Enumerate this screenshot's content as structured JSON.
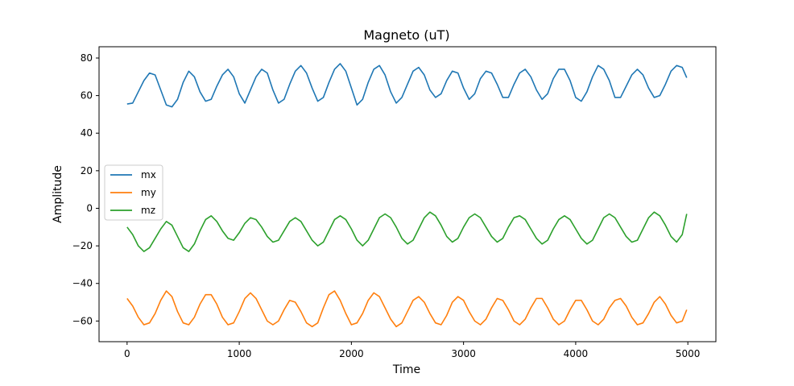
{
  "chart_data": {
    "type": "line",
    "title": "Magneto (uT)",
    "xlabel": "Time",
    "ylabel": "Amplitude",
    "xlim": [
      -250,
      5250
    ],
    "ylim": [
      -71,
      86
    ],
    "xticks": [
      0,
      1000,
      2000,
      3000,
      4000,
      5000
    ],
    "yticks": [
      -60,
      -40,
      -20,
      0,
      20,
      40,
      60,
      80
    ],
    "legend": {
      "placement": "center-left"
    },
    "colors": {
      "mx": "#1f77b4",
      "my": "#ff7f0e",
      "mz": "#2ca02c"
    },
    "series": [
      {
        "name": "mx",
        "x": [
          0,
          50,
          100,
          150,
          200,
          250,
          300,
          350,
          400,
          450,
          500,
          550,
          600,
          650,
          700,
          750,
          800,
          850,
          900,
          950,
          1000,
          1050,
          1100,
          1150,
          1200,
          1250,
          1300,
          1350,
          1400,
          1450,
          1500,
          1550,
          1600,
          1650,
          1700,
          1750,
          1800,
          1850,
          1900,
          1950,
          2000,
          2050,
          2100,
          2150,
          2200,
          2250,
          2300,
          2350,
          2400,
          2450,
          2500,
          2550,
          2600,
          2650,
          2700,
          2750,
          2800,
          2850,
          2900,
          2950,
          3000,
          3050,
          3100,
          3150,
          3200,
          3250,
          3300,
          3350,
          3400,
          3450,
          3500,
          3550,
          3600,
          3650,
          3700,
          3750,
          3800,
          3850,
          3900,
          3950,
          4000,
          4050,
          4100,
          4150,
          4200,
          4250,
          4300,
          4350,
          4400,
          4450,
          4500,
          4550,
          4600,
          4650,
          4700,
          4750,
          4800,
          4850,
          4900,
          4950,
          4990
        ],
        "values": [
          55.5,
          56,
          62,
          68,
          72,
          71,
          63,
          55,
          54,
          58,
          67,
          73,
          70,
          62,
          57,
          58,
          65,
          71,
          74,
          70,
          61,
          56,
          63,
          70,
          74,
          72,
          63,
          56,
          58,
          66,
          73,
          76,
          72,
          64,
          57,
          59,
          67,
          74,
          77,
          73,
          64,
          55,
          58,
          67,
          74,
          76,
          71,
          62,
          56,
          59,
          66,
          73,
          75,
          71,
          63,
          59,
          61,
          68,
          73,
          72,
          64,
          58,
          61,
          69,
          73,
          72,
          66,
          59,
          59,
          66,
          72,
          74,
          70,
          63,
          58,
          61,
          69,
          74,
          74,
          68,
          59,
          57,
          62,
          70,
          76,
          74,
          68,
          59,
          59,
          65,
          71,
          74,
          71,
          64,
          59,
          60,
          66,
          73,
          76,
          75,
          69.5
        ]
      },
      {
        "name": "my",
        "x": [
          0,
          50,
          100,
          150,
          200,
          250,
          300,
          350,
          400,
          450,
          500,
          550,
          600,
          650,
          700,
          750,
          800,
          850,
          900,
          950,
          1000,
          1050,
          1100,
          1150,
          1200,
          1250,
          1300,
          1350,
          1400,
          1450,
          1500,
          1550,
          1600,
          1650,
          1700,
          1750,
          1800,
          1850,
          1900,
          1950,
          2000,
          2050,
          2100,
          2150,
          2200,
          2250,
          2300,
          2350,
          2400,
          2450,
          2500,
          2550,
          2600,
          2650,
          2700,
          2750,
          2800,
          2850,
          2900,
          2950,
          3000,
          3050,
          3100,
          3150,
          3200,
          3250,
          3300,
          3350,
          3400,
          3450,
          3500,
          3550,
          3600,
          3650,
          3700,
          3750,
          3800,
          3850,
          3900,
          3950,
          4000,
          4050,
          4100,
          4150,
          4200,
          4250,
          4300,
          4350,
          4400,
          4450,
          4500,
          4550,
          4600,
          4650,
          4700,
          4750,
          4800,
          4850,
          4900,
          4950,
          4990
        ],
        "values": [
          -48,
          -52,
          -58,
          -62,
          -61,
          -56,
          -49,
          -44,
          -47,
          -55,
          -61,
          -62,
          -58,
          -51,
          -46,
          -46,
          -51,
          -58,
          -62,
          -61,
          -55,
          -48,
          -45,
          -48,
          -54,
          -60,
          -62,
          -60,
          -54,
          -49,
          -50,
          -55,
          -61,
          -63,
          -61,
          -53,
          -46,
          -44,
          -49,
          -56,
          -62,
          -61,
          -56,
          -49,
          -45,
          -47,
          -53,
          -59,
          -63,
          -61,
          -55,
          -49,
          -47,
          -50,
          -56,
          -61,
          -62,
          -57,
          -50,
          -47,
          -49,
          -55,
          -60,
          -62,
          -59,
          -53,
          -48,
          -49,
          -54,
          -60,
          -62,
          -59,
          -53,
          -48,
          -48,
          -53,
          -59,
          -62,
          -60,
          -54,
          -49,
          -49,
          -54,
          -60,
          -62,
          -59,
          -53,
          -49,
          -48,
          -52,
          -58,
          -62,
          -61,
          -56,
          -50,
          -47,
          -51,
          -57,
          -61,
          -60,
          -54
        ]
      },
      {
        "name": "mz",
        "x": [
          0,
          50,
          100,
          150,
          200,
          250,
          300,
          350,
          400,
          450,
          500,
          550,
          600,
          650,
          700,
          750,
          800,
          850,
          900,
          950,
          1000,
          1050,
          1100,
          1150,
          1200,
          1250,
          1300,
          1350,
          1400,
          1450,
          1500,
          1550,
          1600,
          1650,
          1700,
          1750,
          1800,
          1850,
          1900,
          1950,
          2000,
          2050,
          2100,
          2150,
          2200,
          2250,
          2300,
          2350,
          2400,
          2450,
          2500,
          2550,
          2600,
          2650,
          2700,
          2750,
          2800,
          2850,
          2900,
          2950,
          3000,
          3050,
          3100,
          3150,
          3200,
          3250,
          3300,
          3350,
          3400,
          3450,
          3500,
          3550,
          3600,
          3650,
          3700,
          3750,
          3800,
          3850,
          3900,
          3950,
          4000,
          4050,
          4100,
          4150,
          4200,
          4250,
          4300,
          4350,
          4400,
          4450,
          4500,
          4550,
          4600,
          4650,
          4700,
          4750,
          4800,
          4850,
          4900,
          4950,
          4990
        ],
        "values": [
          -10,
          -14,
          -20,
          -23,
          -21,
          -16,
          -11,
          -7,
          -9,
          -15,
          -21,
          -23,
          -19,
          -12,
          -6,
          -4,
          -7,
          -12,
          -16,
          -17,
          -13,
          -8,
          -5,
          -6,
          -10,
          -15,
          -18,
          -17,
          -12,
          -7,
          -5,
          -7,
          -12,
          -17,
          -20,
          -18,
          -12,
          -6,
          -4,
          -6,
          -11,
          -17,
          -20,
          -17,
          -11,
          -5,
          -3,
          -5,
          -10,
          -16,
          -19,
          -17,
          -11,
          -5,
          -2,
          -4,
          -9,
          -15,
          -18,
          -16,
          -10,
          -5,
          -3,
          -5,
          -10,
          -15,
          -18,
          -16,
          -10,
          -5,
          -4,
          -6,
          -11,
          -16,
          -19,
          -17,
          -11,
          -6,
          -4,
          -6,
          -11,
          -16,
          -19,
          -17,
          -11,
          -5,
          -3,
          -5,
          -10,
          -15,
          -18,
          -17,
          -11,
          -5,
          -2,
          -4,
          -9,
          -15,
          -18,
          -14,
          -3
        ]
      }
    ]
  }
}
